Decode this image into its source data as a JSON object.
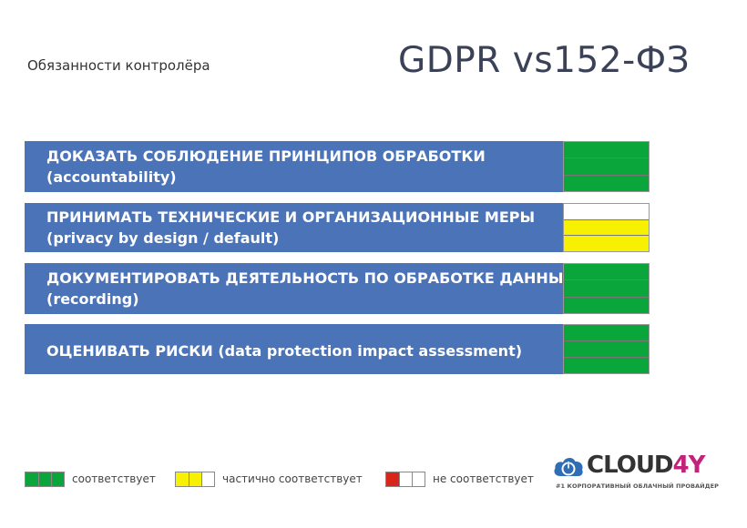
{
  "header": {
    "subtitle": "Обязанности контролёра",
    "title": "GDPR vs152-ФЗ"
  },
  "colors": {
    "row_blue": "#4a73b8",
    "green": "#0aa63c",
    "yellow": "#f7f000",
    "red": "#d9261c",
    "white": "#ffffff",
    "logo_accent": "#c1227a"
  },
  "rows": [
    {
      "line1": "ДОКАЗАТЬ СОБЛЮДЕНИЕ ПРИНЦИПОВ ОБРАБОТКИ",
      "line2": "(accountability)",
      "cells": [
        "green",
        "green",
        "green"
      ]
    },
    {
      "line1": "ПРИНИМАТЬ ТЕХНИЧЕСКИЕ И ОРГАНИЗАЦИОННЫЕ МЕРЫ",
      "line2": "(privacy by design / default)",
      "cells": [
        "white",
        "yellow",
        "yellow"
      ]
    },
    {
      "line1": "ДОКУМЕНТИРОВАТЬ ДЕЯТЕЛЬНОСТЬ ПО ОБРАБОТКЕ ДАННЫХ",
      "line2": "(recording)",
      "cells": [
        "green",
        "green",
        "green"
      ]
    },
    {
      "line1": "ОЦЕНИВАТЬ РИСКИ  (data protection impact assessment)",
      "line2": "",
      "cells": [
        "green",
        "green",
        "green"
      ]
    }
  ],
  "legend": [
    {
      "label": "соответствует",
      "boxes": [
        "green",
        "green",
        "green"
      ]
    },
    {
      "label": "частично соответствует",
      "boxes": [
        "yellow",
        "yellow",
        "white"
      ]
    },
    {
      "label": "не соответствует",
      "boxes": [
        "red",
        "white",
        "white"
      ]
    }
  ],
  "logo": {
    "icon": "power-cloud-icon",
    "word_main": "CLOUD",
    "word_accent": "4Y",
    "tagline": "#1 КОРПОРАТИВНЫЙ ОБЛАЧНЫЙ ПРОВАЙДЕР"
  }
}
